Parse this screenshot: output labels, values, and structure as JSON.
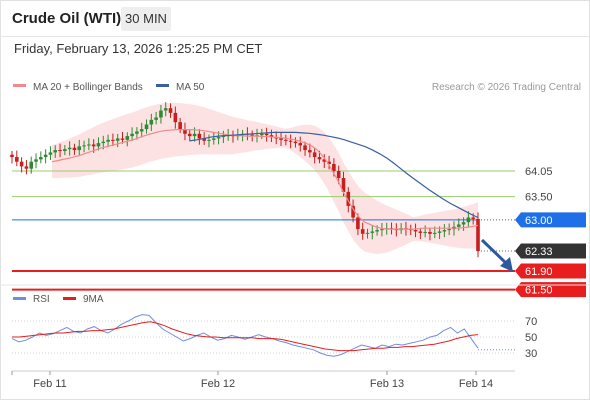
{
  "header": {
    "title": "Crude Oil (WTI)",
    "timeframe": "30 MIN",
    "timestamp": "Friday, February 13, 2026 1:25:25 PM CET"
  },
  "chart_data": [
    {
      "type": "candlestick",
      "legend": [
        {
          "name": "MA 20 + Bollinger Bands",
          "color": "#f08a8a"
        },
        {
          "name": "MA 50",
          "color": "#3a5f9f"
        }
      ],
      "credit": "Research © 2026 Trading Central",
      "x_ticks": [
        "Feb 11",
        "Feb 12",
        "Feb 13",
        "Feb 14"
      ],
      "ylim": [
        61.2,
        65.5
      ],
      "close": [
        64.35,
        64.25,
        64.15,
        64.1,
        64.25,
        64.3,
        64.35,
        64.4,
        64.45,
        64.5,
        64.48,
        64.52,
        64.55,
        64.5,
        64.58,
        64.6,
        64.62,
        64.58,
        64.65,
        64.68,
        64.72,
        64.7,
        64.75,
        64.72,
        64.8,
        64.85,
        64.9,
        64.95,
        65.05,
        65.15,
        65.2,
        65.35,
        65.4,
        65.3,
        65.1,
        64.95,
        64.85,
        64.8,
        64.85,
        64.75,
        64.7,
        64.72,
        64.75,
        64.78,
        64.8,
        64.82,
        64.8,
        64.82,
        64.85,
        64.83,
        64.8,
        64.82,
        64.85,
        64.82,
        64.78,
        64.75,
        64.72,
        64.7,
        64.68,
        64.65,
        64.6,
        64.5,
        64.45,
        64.35,
        64.3,
        64.25,
        64.2,
        64.05,
        63.9,
        63.6,
        63.3,
        63.05,
        62.8,
        62.7,
        62.72,
        62.75,
        62.78,
        62.8,
        62.82,
        62.8,
        62.78,
        62.82,
        62.8,
        62.78,
        62.75,
        62.72,
        62.74,
        62.7,
        62.72,
        62.75,
        62.78,
        62.8,
        62.85,
        62.9,
        62.95,
        63.05,
        63.02,
        62.33
      ],
      "ma20": [
        64.25,
        64.27,
        64.3,
        64.32,
        64.35,
        64.38,
        64.42,
        64.46,
        64.5,
        64.54,
        64.57,
        64.6,
        64.63,
        64.66,
        64.69,
        64.72,
        64.76,
        64.8,
        64.84,
        64.87,
        64.9,
        64.92,
        64.93,
        64.94,
        64.94,
        64.94,
        64.94,
        64.93,
        64.92,
        64.9,
        64.88,
        64.86,
        64.84,
        64.82,
        64.81,
        64.81,
        64.8,
        64.8,
        64.8,
        64.79,
        64.79,
        64.78,
        64.77,
        64.76,
        64.74,
        64.72,
        64.69,
        64.65,
        64.6,
        64.52,
        64.4,
        64.25,
        64.05,
        63.85,
        63.6,
        63.4,
        63.2,
        63.05,
        62.95,
        62.9,
        62.85,
        62.82,
        62.8,
        62.8,
        62.8,
        62.8,
        62.8,
        62.8,
        62.81,
        62.82,
        62.82,
        62.82,
        62.82,
        62.82,
        62.82,
        62.82,
        62.83,
        62.84,
        62.86,
        62.88
      ],
      "ma20_x_start": 52,
      "ma50": [
        64.7,
        64.72,
        64.75,
        64.78,
        64.8,
        64.81,
        64.82,
        64.83,
        64.84,
        64.85,
        64.86,
        64.87,
        64.88,
        64.88,
        64.88,
        64.88,
        64.87,
        64.86,
        64.84,
        64.82,
        64.79,
        64.76,
        64.72,
        64.67,
        64.62,
        64.57,
        64.5,
        64.42,
        64.33,
        64.22,
        64.1,
        63.98,
        63.87,
        63.76,
        63.65,
        63.55,
        63.45,
        63.36,
        63.28,
        63.2,
        63.12,
        63.05
      ],
      "ma50_x_start": 190,
      "support_resistance": [
        {
          "label": "64.05",
          "value": 64.05,
          "color": "#9acc6a"
        },
        {
          "label": "63.50",
          "value": 63.5,
          "color": "#9acc6a"
        },
        {
          "label": "63.00",
          "value": 63.0,
          "color": "#1e6fe8",
          "badge": true
        },
        {
          "label": "62.33",
          "value": 62.33,
          "color": "#333333",
          "badge": true
        },
        {
          "label": "61.90",
          "value": 61.9,
          "color": "#e81e1e",
          "badge": true
        },
        {
          "label": "61.50",
          "value": 61.5,
          "color": "#e81e1e",
          "badge": true
        }
      ]
    },
    {
      "type": "line",
      "legend": [
        {
          "name": "RSI",
          "color": "#6e8fdc"
        },
        {
          "name": "9MA",
          "color": "#e81e1e"
        }
      ],
      "y_ticks": [
        70,
        50,
        30
      ],
      "ylim": [
        20,
        80
      ],
      "rsi": [
        48,
        44,
        46,
        50,
        55,
        52,
        54,
        58,
        62,
        57,
        55,
        60,
        63,
        58,
        55,
        60,
        66,
        70,
        75,
        78,
        77,
        68,
        60,
        55,
        50,
        45,
        48,
        52,
        55,
        50,
        46,
        48,
        52,
        50,
        47,
        50,
        53,
        50,
        48,
        45,
        43,
        40,
        38,
        36,
        34,
        30,
        27,
        26,
        28,
        32,
        36,
        40,
        38,
        36,
        40,
        38,
        41,
        40,
        42,
        44,
        46,
        50,
        52,
        58,
        62,
        55,
        60,
        48,
        36
      ],
      "ma9": [
        50,
        50,
        51,
        52,
        53,
        54,
        55,
        55,
        56,
        57,
        57,
        58,
        58,
        59,
        60,
        62,
        64,
        66,
        68,
        69,
        67,
        64,
        60,
        57,
        54,
        52,
        51,
        50,
        50,
        49,
        49,
        49,
        49,
        49,
        48,
        48,
        48,
        47,
        45,
        43,
        41,
        39,
        37,
        35,
        34,
        33,
        33,
        33,
        34,
        35,
        36,
        36,
        37,
        37,
        38,
        38,
        39,
        40,
        41,
        43,
        45,
        48,
        50,
        52,
        53
      ],
      "rsi_dotted_tail": 34
    }
  ]
}
